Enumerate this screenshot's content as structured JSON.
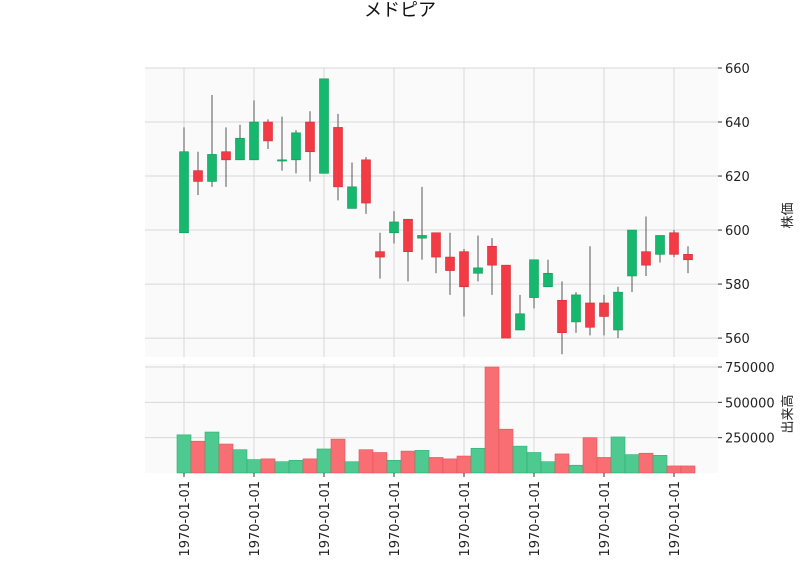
{
  "chart_data": {
    "type": "candlestick",
    "title": "メドピア",
    "price_ylabel": "株価",
    "volume_ylabel": "出来高",
    "price_ylim": [
      553,
      660
    ],
    "price_yticks": [
      560,
      580,
      600,
      620,
      640,
      660
    ],
    "volume_ylim": [
      0,
      750000
    ],
    "volume_yticks": [
      250000,
      500000,
      750000
    ],
    "volume_ytick_labels": [
      "250000",
      "500000",
      "750000"
    ],
    "x_tick_labels": [
      "1970-01-01",
      "1970-01-01",
      "1970-01-01",
      "1970-01-01",
      "1970-01-01",
      "1970-01-01",
      "1970-01-01",
      "1970-01-01"
    ],
    "x_tick_indices": [
      0,
      5,
      10,
      15,
      20,
      25,
      30,
      35
    ],
    "grid": true,
    "colors": {
      "up": "#16b86e",
      "down": "#f23b45",
      "volume_up": "#4ec98f",
      "volume_down": "#f86e73",
      "background": "#fafafa",
      "grid": "#d8d8d8",
      "wick": "#555555"
    },
    "candles": [
      {
        "open": 599,
        "high": 638,
        "low": 599,
        "close": 629,
        "volume": 270000
      },
      {
        "open": 622,
        "high": 629,
        "low": 613,
        "close": 618,
        "volume": 225000
      },
      {
        "open": 618,
        "high": 650,
        "low": 616,
        "close": 628,
        "volume": 290000
      },
      {
        "open": 629,
        "high": 638,
        "low": 616,
        "close": 626,
        "volume": 205000
      },
      {
        "open": 626,
        "high": 639,
        "low": 626,
        "close": 634,
        "volume": 165000
      },
      {
        "open": 626,
        "high": 648,
        "low": 626,
        "close": 640,
        "volume": 95000
      },
      {
        "open": 640,
        "high": 641,
        "low": 630,
        "close": 633,
        "volume": 100000
      },
      {
        "open": 626,
        "high": 642,
        "low": 622,
        "close": 626,
        "volume": 80000
      },
      {
        "open": 626,
        "high": 637,
        "low": 621,
        "close": 636,
        "volume": 90000
      },
      {
        "open": 640,
        "high": 644,
        "low": 618,
        "close": 629,
        "volume": 100000
      },
      {
        "open": 621,
        "high": 656,
        "low": 621,
        "close": 656,
        "volume": 170000
      },
      {
        "open": 638,
        "high": 643,
        "low": 611,
        "close": 616,
        "volume": 240000
      },
      {
        "open": 608,
        "high": 625,
        "low": 608,
        "close": 616,
        "volume": 80000
      },
      {
        "open": 626,
        "high": 627,
        "low": 606,
        "close": 610,
        "volume": 165000
      },
      {
        "open": 592,
        "high": 599,
        "low": 582,
        "close": 590,
        "volume": 145000
      },
      {
        "open": 599,
        "high": 607,
        "low": 595,
        "close": 603,
        "volume": 90000
      },
      {
        "open": 604,
        "high": 604,
        "low": 581,
        "close": 592,
        "volume": 155000
      },
      {
        "open": 597,
        "high": 616,
        "low": 589,
        "close": 598,
        "volume": 160000
      },
      {
        "open": 599,
        "high": 599,
        "low": 584,
        "close": 590,
        "volume": 110000
      },
      {
        "open": 590,
        "high": 599,
        "low": 576,
        "close": 585,
        "volume": 100000
      },
      {
        "open": 592,
        "high": 593,
        "low": 568,
        "close": 579,
        "volume": 120000
      },
      {
        "open": 584,
        "high": 598,
        "low": 581,
        "close": 586,
        "volume": 175000
      },
      {
        "open": 594,
        "high": 597,
        "low": 576,
        "close": 587,
        "volume": 750000
      },
      {
        "open": 587,
        "high": 587,
        "low": 560,
        "close": 560,
        "volume": 310000
      },
      {
        "open": 563,
        "high": 576,
        "low": 563,
        "close": 569,
        "volume": 190000
      },
      {
        "open": 575,
        "high": 589,
        "low": 571,
        "close": 589,
        "volume": 145000
      },
      {
        "open": 579,
        "high": 589,
        "low": 579,
        "close": 584,
        "volume": 80000
      },
      {
        "open": 574,
        "high": 581,
        "low": 554,
        "close": 562,
        "volume": 135000
      },
      {
        "open": 566,
        "high": 577,
        "low": 562,
        "close": 576,
        "volume": 55000
      },
      {
        "open": 573,
        "high": 594,
        "low": 561,
        "close": 564,
        "volume": 250000
      },
      {
        "open": 573,
        "high": 576,
        "low": 561,
        "close": 568,
        "volume": 110000
      },
      {
        "open": 563,
        "high": 579,
        "low": 560,
        "close": 577,
        "volume": 255000
      },
      {
        "open": 583,
        "high": 600,
        "low": 577,
        "close": 600,
        "volume": 130000
      },
      {
        "open": 592,
        "high": 605,
        "low": 583,
        "close": 587,
        "volume": 140000
      },
      {
        "open": 591,
        "high": 598,
        "low": 588,
        "close": 598,
        "volume": 125000
      },
      {
        "open": 599,
        "high": 600,
        "low": 590,
        "close": 591,
        "volume": 50000
      },
      {
        "open": 591,
        "high": 594,
        "low": 584,
        "close": 589,
        "volume": 50000
      }
    ]
  }
}
